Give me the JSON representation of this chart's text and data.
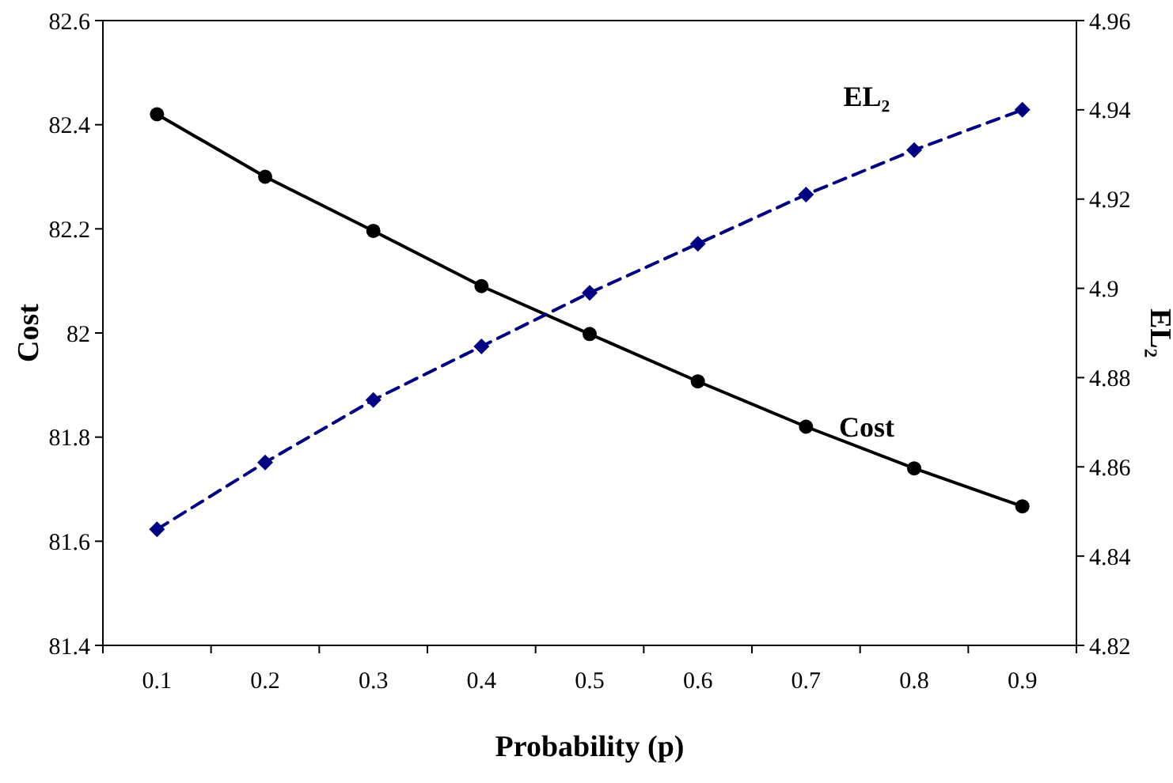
{
  "chart_data": {
    "type": "line",
    "xlabel": "Probability (p)",
    "ylabel": "Cost",
    "y2label": "EL₂",
    "categories": [
      "0.1",
      "0.2",
      "0.3",
      "0.4",
      "0.5",
      "0.6",
      "0.7",
      "0.8",
      "0.9"
    ],
    "series": [
      {
        "name": "Cost",
        "color": "#000000",
        "marker": "circle",
        "line_style": "solid",
        "values": [
          82.42,
          82.3,
          82.196,
          82.09,
          81.998,
          81.907,
          81.82,
          81.74,
          81.667
        ]
      },
      {
        "name": "EL₂",
        "color": "#000080",
        "marker": "diamond",
        "line_style": "dashed",
        "axis": "y2",
        "values": [
          4.846,
          4.861,
          4.875,
          4.887,
          4.899,
          4.91,
          4.921,
          4.931,
          4.94
        ]
      }
    ],
    "ylim": [
      81.4,
      82.6
    ],
    "yticks": [
      81.4,
      81.6,
      81.8,
      82,
      82.2,
      82.4,
      82.6
    ],
    "y2lim": [
      4.82,
      4.96
    ],
    "y2ticks": [
      4.82,
      4.84,
      4.86,
      4.88,
      4.9,
      4.92,
      4.94,
      4.96
    ]
  }
}
